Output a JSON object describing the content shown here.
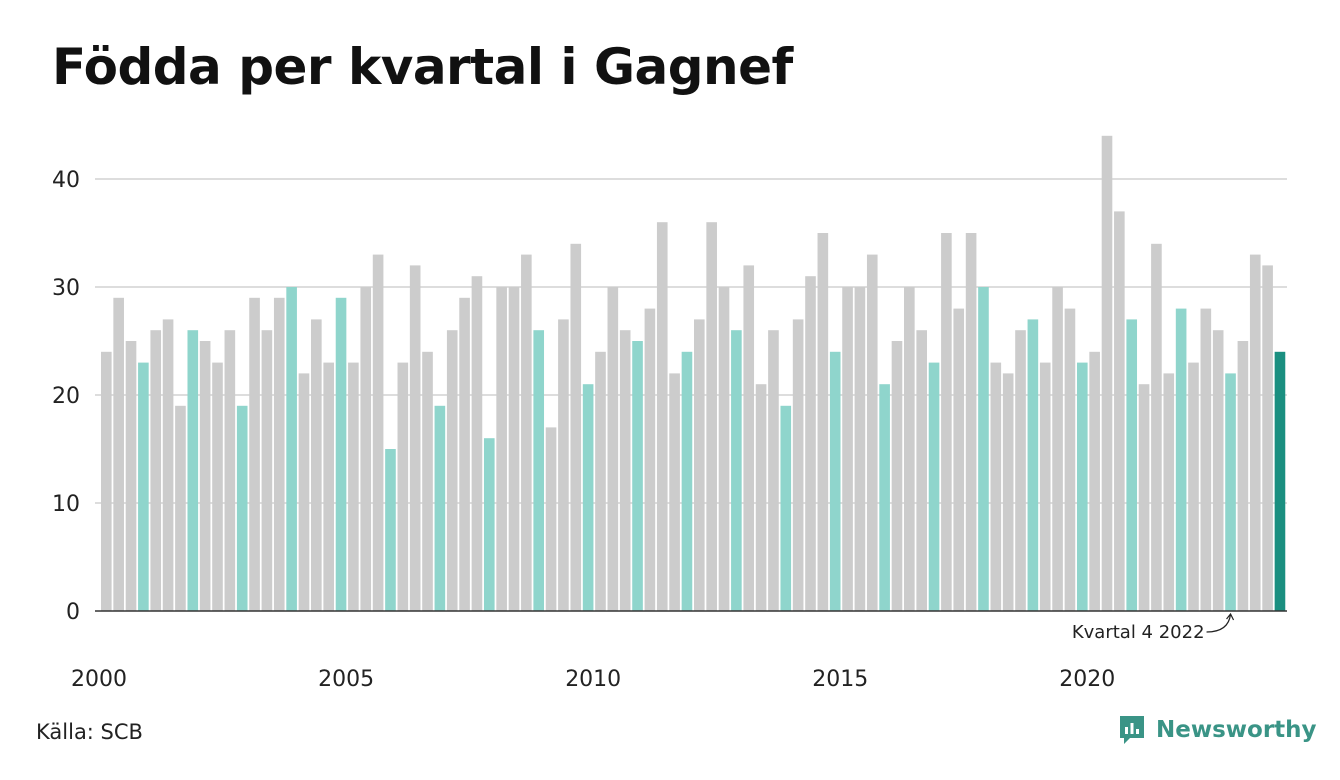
{
  "title": "Födda per kvartal i Gagnef",
  "source": "Källa: SCB",
  "brand": {
    "name": "Newsworthy",
    "icon": "newsworthy-logo-icon"
  },
  "colors": {
    "default_bar": "#cccccc",
    "q4_bar": "#8fd5cc",
    "latest_bar": "#1a8f80",
    "grid": "#dddddd",
    "axis": "#333333",
    "brand": "#3a9486"
  },
  "chart_data": {
    "type": "bar",
    "title": "Födda per kvartal i Gagnef",
    "xlabel": "",
    "ylabel": "",
    "ylim": [
      0,
      45
    ],
    "yticks": [
      0,
      10,
      20,
      30,
      40
    ],
    "xticks": [
      "2000",
      "2005",
      "2010",
      "2015",
      "2020"
    ],
    "grid": true,
    "start_year": 2000,
    "highlight": "quarter 4 bars in light teal; latest bar in dark teal",
    "annotation": {
      "text": "Kvartal 4 2022",
      "target_period": "2022 Q4"
    },
    "values": [
      24,
      29,
      25,
      23,
      26,
      27,
      19,
      26,
      25,
      23,
      26,
      19,
      29,
      26,
      29,
      30,
      22,
      27,
      23,
      29,
      23,
      30,
      33,
      15,
      23,
      32,
      24,
      19,
      26,
      29,
      31,
      16,
      30,
      30,
      33,
      26,
      17,
      27,
      34,
      21,
      24,
      30,
      26,
      25,
      28,
      36,
      22,
      24,
      27,
      36,
      30,
      26,
      32,
      21,
      26,
      19,
      27,
      31,
      35,
      24,
      30,
      30,
      33,
      21,
      25,
      30,
      26,
      23,
      35,
      28,
      35,
      30,
      23,
      22,
      26,
      27,
      23,
      30,
      28,
      23,
      24,
      44,
      37,
      27,
      21,
      34,
      22,
      28,
      23,
      28,
      26,
      22,
      25,
      33,
      32,
      24
    ]
  }
}
